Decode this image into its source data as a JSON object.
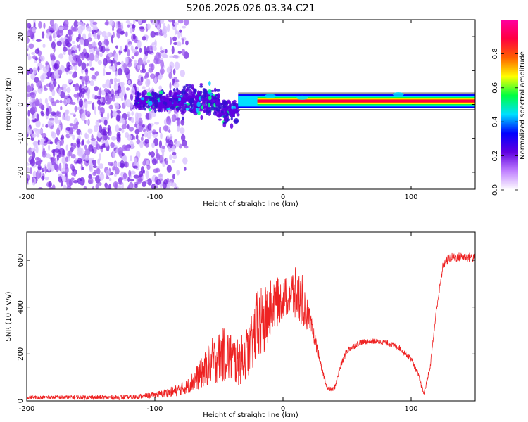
{
  "title": "S206.2026.026.03.34.C21",
  "chart_data": [
    {
      "type": "heatmap",
      "xlabel": "Height of straight line (km)",
      "ylabel": "Frequency (Hz)",
      "xlim": [
        -200,
        150
      ],
      "ylim": [
        -25,
        25
      ],
      "xticks": [
        -200,
        -100,
        0,
        100
      ],
      "yticks": [
        -20,
        -10,
        0,
        10,
        20
      ],
      "description_series": [
        {
          "name": "noise cloud",
          "x_range": [
            -200,
            -80
          ],
          "y_range": [
            -25,
            25
          ]
        },
        {
          "name": "scattered signal",
          "x_range": [
            -115,
            -35
          ],
          "y_range": [
            -8,
            8
          ]
        },
        {
          "name": "coherent tone",
          "x_range": [
            -35,
            150
          ],
          "frequency_hz": 1
        }
      ],
      "colorbar": {
        "label": "Normalized spectral amplitude",
        "range": [
          0,
          1
        ],
        "ticks": [
          "0.0",
          "0.2",
          "0.4",
          "0.6",
          "0.8"
        ],
        "colors": [
          "#ffffff",
          "#c080ff",
          "#6000e0",
          "#0000ff",
          "#00e0ff",
          "#00ff40",
          "#ffff00",
          "#ff6000",
          "#ff0040",
          "#ff00a0"
        ]
      }
    },
    {
      "type": "line",
      "xlabel": "Height of straight line (km)",
      "ylabel": "SNR (10 * v/v)",
      "xlim": [
        -200,
        150
      ],
      "ylim": [
        0,
        720
      ],
      "xticks": [
        -200,
        -100,
        0,
        100
      ],
      "yticks": [
        0,
        200,
        400,
        600
      ],
      "color": "#ee2222",
      "envelope": {
        "x": [
          -200,
          -120,
          -100,
          -85,
          -75,
          -65,
          -55,
          -45,
          -35,
          -25,
          -20,
          -15,
          -10,
          -5,
          0,
          5,
          10,
          15,
          20,
          25,
          30,
          35,
          40,
          45,
          50,
          60,
          70,
          80,
          90,
          100,
          105,
          110,
          115,
          120,
          125,
          130,
          140,
          150
        ],
        "mean": [
          15,
          15,
          25,
          40,
          60,
          110,
          170,
          200,
          160,
          230,
          330,
          330,
          400,
          420,
          430,
          460,
          450,
          430,
          350,
          260,
          140,
          50,
          50,
          150,
          215,
          250,
          255,
          250,
          230,
          180,
          120,
          30,
          150,
          400,
          580,
          610,
          615,
          610
        ],
        "spread": [
          8,
          10,
          12,
          25,
          30,
          60,
          100,
          120,
          100,
          120,
          160,
          150,
          120,
          110,
          80,
          100,
          120,
          110,
          60,
          30,
          15,
          10,
          10,
          15,
          15,
          12,
          12,
          12,
          12,
          12,
          12,
          10,
          12,
          15,
          20,
          20,
          20,
          20
        ]
      }
    }
  ]
}
